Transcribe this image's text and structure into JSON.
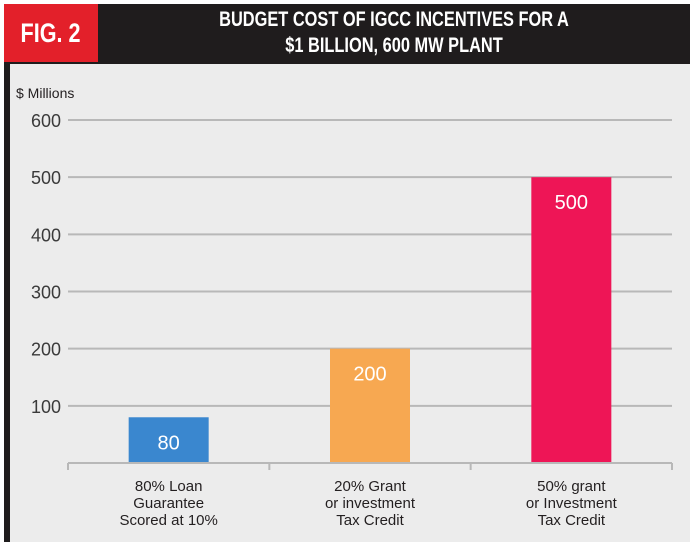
{
  "figure": {
    "badge": "FIG. 2",
    "title_lines": [
      "BUDGET COST OF IGCC INCENTIVES FOR A",
      "$1 BILLION, 600 MW PLANT"
    ]
  },
  "colors": {
    "badge": "#e3202a",
    "header": "#1f1c1d",
    "panel": "#ececec",
    "grid": "#b8b8b8",
    "text": "#231f20"
  },
  "chart_data": {
    "type": "bar",
    "title": "Budget Cost of IGCC incentives for a $1 Billion, 600 MW Plant",
    "ylabel": "$ Millions",
    "xlabel": "",
    "ylim": [
      0,
      600
    ],
    "yticks": [
      100,
      200,
      300,
      400,
      500,
      600
    ],
    "grid": true,
    "categories": [
      [
        "80% Loan",
        "Guarantee",
        "Scored at 10%"
      ],
      [
        "20% Grant",
        "or investment",
        "Tax Credit"
      ],
      [
        "50% grant",
        "or Investment",
        "Tax Credit"
      ]
    ],
    "values": [
      80,
      200,
      500
    ],
    "bar_colors": [
      "#3a87cf",
      "#f7a851",
      "#ee1556"
    ],
    "data_labels": [
      "80",
      "200",
      "500"
    ]
  }
}
